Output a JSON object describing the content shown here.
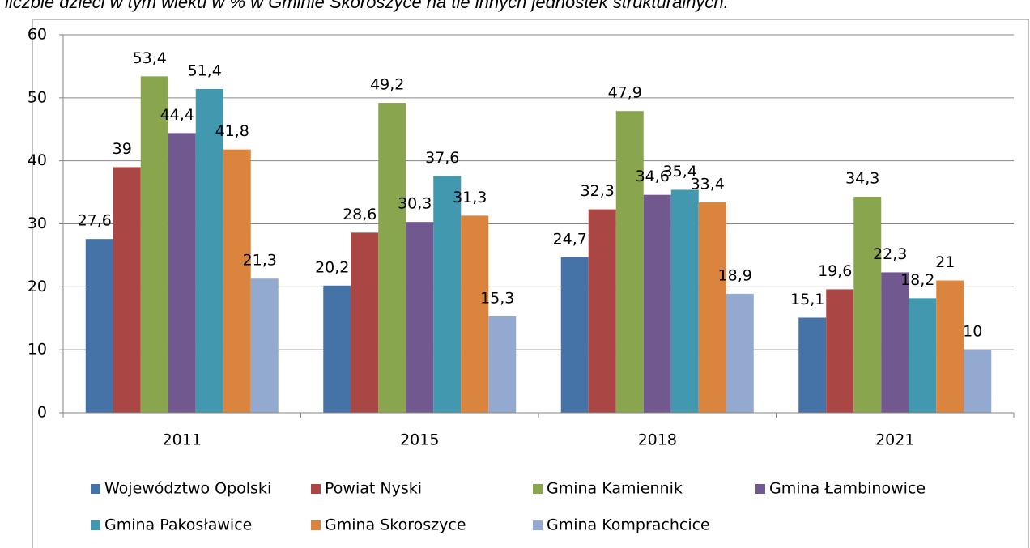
{
  "chart_data": {
    "type": "bar",
    "title": "liczbie dzieci w tym wieku w % w Gminie Skoroszyce na tle innych jednostek strukturalnych.",
    "categories": [
      "2011",
      "2015",
      "2018",
      "2021"
    ],
    "series": [
      {
        "name": "Województwo Opolski",
        "color": "#4572a7",
        "values": [
          27.6,
          20.2,
          24.7,
          15.1
        ],
        "value_labels": [
          "27,6",
          "20,2",
          "24,7",
          "15,1"
        ]
      },
      {
        "name": "Powiat Nyski",
        "color": "#aa4643",
        "values": [
          39,
          28.6,
          32.3,
          19.6
        ],
        "value_labels": [
          "39",
          "28,6",
          "32,3",
          "19,6"
        ]
      },
      {
        "name": "Gmina Kamiennik",
        "color": "#89a54e",
        "values": [
          53.4,
          49.2,
          47.9,
          34.3
        ],
        "value_labels": [
          "53,4",
          "49,2",
          "47,9",
          "34,3"
        ]
      },
      {
        "name": "Gmina Łambinowice",
        "color": "#71588f",
        "values": [
          44.4,
          30.3,
          34.6,
          22.3
        ],
        "value_labels": [
          "44,4",
          "30,3",
          "34,6",
          "22,3"
        ]
      },
      {
        "name": "Gmina Pakosławice",
        "color": "#4198af",
        "values": [
          51.4,
          37.6,
          35.4,
          18.2
        ],
        "value_labels": [
          "51,4",
          "37,6",
          "35,4",
          "18,2"
        ]
      },
      {
        "name": "Gmina Skoroszyce",
        "color": "#db843d",
        "values": [
          41.8,
          31.3,
          33.4,
          21
        ],
        "value_labels": [
          "41,8",
          "31,3",
          "33,4",
          "21"
        ]
      },
      {
        "name": "Gmina Komprachcice",
        "color": "#93a9cf",
        "values": [
          21.3,
          15.3,
          18.9,
          10
        ],
        "value_labels": [
          "21,3",
          "15,3",
          "18,9",
          "10"
        ]
      }
    ],
    "ylim": [
      0,
      60
    ],
    "yticks": [
      0,
      10,
      20,
      30,
      40,
      50,
      60
    ],
    "grid": true,
    "legend": "bottom"
  }
}
